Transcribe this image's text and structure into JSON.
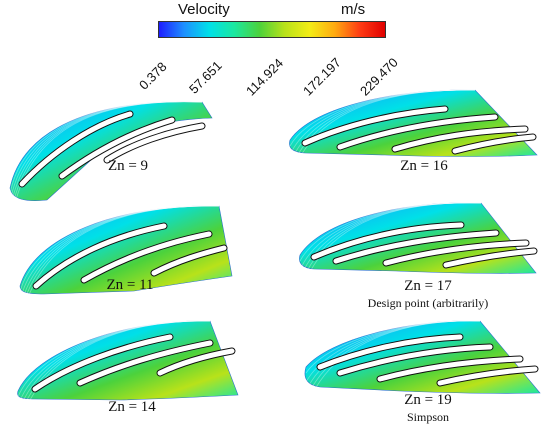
{
  "legend": {
    "title": "Velocity",
    "unit": "m/s",
    "colors": [
      "#1d1dff",
      "#1e90ff",
      "#00e0e8",
      "#1be8a0",
      "#4cd23c",
      "#b8e21a",
      "#f3ec16",
      "#ffaa10",
      "#ff3c14",
      "#e00000"
    ],
    "ticks": [
      "0.378",
      "57.651",
      "114.924",
      "172.197",
      "229.470"
    ]
  },
  "panels": [
    {
      "label": "Zn = 9",
      "sublabel": ""
    },
    {
      "label": "Zn = 11",
      "sublabel": ""
    },
    {
      "label": "Zn = 14",
      "sublabel": ""
    },
    {
      "label": "Zn = 16",
      "sublabel": ""
    },
    {
      "label": "Zn = 17",
      "sublabel": "Design point (arbitrarily)"
    },
    {
      "label": "Zn = 19",
      "sublabel": "Simpson"
    }
  ]
}
